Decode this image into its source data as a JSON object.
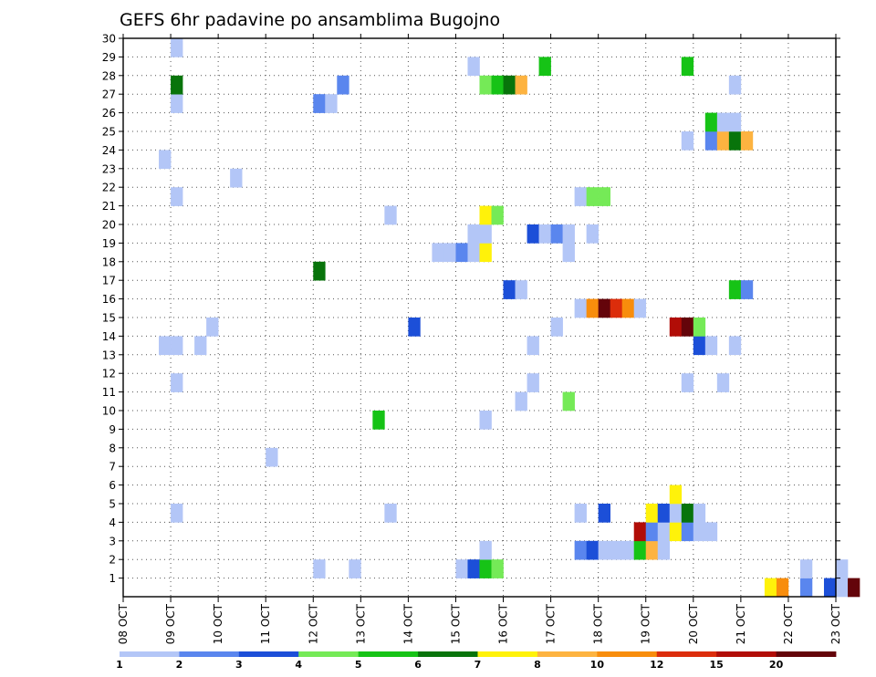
{
  "chart_data": {
    "type": "heatmap",
    "title": "GEFS 6hr padavine po ansamblima Bugojno",
    "xlabel": "",
    "ylabel": "",
    "x_ticks": [
      "08 OCT",
      "09 OCT",
      "10 OCT",
      "11 OCT",
      "12 OCT",
      "13 OCT",
      "14 OCT",
      "15 OCT",
      "16 OCT",
      "17 OCT",
      "18 OCT",
      "19 OCT",
      "20 OCT",
      "21 OCT",
      "22 OCT",
      "23 OCT"
    ],
    "y_ticks": [
      "1",
      "2",
      "3",
      "4",
      "5",
      "6",
      "7",
      "8",
      "9",
      "10",
      "11",
      "12",
      "13",
      "14",
      "15",
      "16",
      "17",
      "18",
      "19",
      "20",
      "21",
      "22",
      "23",
      "24",
      "25",
      "26",
      "27",
      "28",
      "29",
      "30"
    ],
    "xlim_days": [
      0,
      15
    ],
    "ylim_members": [
      0,
      30
    ],
    "grid": true,
    "colorbar": {
      "position": "bottom",
      "labels": [
        "1",
        "2",
        "3",
        "4",
        "5",
        "6",
        "7",
        "8",
        "10",
        "12",
        "15",
        "20"
      ],
      "colors": [
        "#b3c6f7",
        "#5a86ee",
        "#1c4fd8",
        "#75ea57",
        "#16c316",
        "#08740b",
        "#fff20a",
        "#fdb340",
        "#f88d0c",
        "#dc2d0b",
        "#b10d07",
        "#64040a"
      ]
    },
    "cells": [
      {
        "m": 0,
        "s": 54,
        "c": 6
      },
      {
        "m": 0,
        "s": 55,
        "c": 8
      },
      {
        "m": 0,
        "s": 57,
        "c": 1
      },
      {
        "m": 0,
        "s": 59,
        "c": 2
      },
      {
        "m": 0,
        "s": 60,
        "c": 0
      },
      {
        "m": 0,
        "s": 61,
        "c": 11
      },
      {
        "m": 1,
        "s": 16,
        "c": 0
      },
      {
        "m": 1,
        "s": 19,
        "c": 0
      },
      {
        "m": 1,
        "s": 28,
        "c": 0
      },
      {
        "m": 1,
        "s": 29,
        "c": 2
      },
      {
        "m": 1,
        "s": 30,
        "c": 4
      },
      {
        "m": 1,
        "s": 31,
        "c": 3
      },
      {
        "m": 1,
        "s": 57,
        "c": 0
      },
      {
        "m": 1,
        "s": 60,
        "c": 0
      },
      {
        "m": 2,
        "s": 30,
        "c": 0
      },
      {
        "m": 2,
        "s": 38,
        "c": 1
      },
      {
        "m": 2,
        "s": 39,
        "c": 2
      },
      {
        "m": 2,
        "s": 40,
        "c": 0
      },
      {
        "m": 2,
        "s": 41,
        "c": 0
      },
      {
        "m": 2,
        "s": 42,
        "c": 0
      },
      {
        "m": 2,
        "s": 43,
        "c": 4
      },
      {
        "m": 2,
        "s": 44,
        "c": 7
      },
      {
        "m": 2,
        "s": 45,
        "c": 0
      },
      {
        "m": 3,
        "s": 43,
        "c": 10
      },
      {
        "m": 3,
        "s": 44,
        "c": 1
      },
      {
        "m": 3,
        "s": 45,
        "c": 0
      },
      {
        "m": 3,
        "s": 46,
        "c": 6
      },
      {
        "m": 3,
        "s": 47,
        "c": 1
      },
      {
        "m": 3,
        "s": 48,
        "c": 0
      },
      {
        "m": 3,
        "s": 49,
        "c": 0
      },
      {
        "m": 4,
        "s": 4,
        "c": 0
      },
      {
        "m": 4,
        "s": 22,
        "c": 0
      },
      {
        "m": 4,
        "s": 38,
        "c": 0
      },
      {
        "m": 4,
        "s": 40,
        "c": 2
      },
      {
        "m": 4,
        "s": 44,
        "c": 6
      },
      {
        "m": 4,
        "s": 45,
        "c": 2
      },
      {
        "m": 4,
        "s": 46,
        "c": 0
      },
      {
        "m": 4,
        "s": 47,
        "c": 5
      },
      {
        "m": 4,
        "s": 48,
        "c": 0
      },
      {
        "m": 5,
        "s": 46,
        "c": 6
      },
      {
        "m": 7,
        "s": 12,
        "c": 0
      },
      {
        "m": 9,
        "s": 30,
        "c": 0
      },
      {
        "m": 9,
        "s": 21,
        "c": 4
      },
      {
        "m": 10,
        "s": 33,
        "c": 0
      },
      {
        "m": 10,
        "s": 37,
        "c": 3
      },
      {
        "m": 11,
        "s": 4,
        "c": 0
      },
      {
        "m": 11,
        "s": 34,
        "c": 0
      },
      {
        "m": 11,
        "s": 47,
        "c": 0
      },
      {
        "m": 11,
        "s": 50,
        "c": 0
      },
      {
        "m": 13,
        "s": 3,
        "c": 0
      },
      {
        "m": 13,
        "s": 4,
        "c": 0
      },
      {
        "m": 13,
        "s": 6,
        "c": 0
      },
      {
        "m": 13,
        "s": 34,
        "c": 0
      },
      {
        "m": 13,
        "s": 48,
        "c": 2
      },
      {
        "m": 13,
        "s": 49,
        "c": 0
      },
      {
        "m": 13,
        "s": 51,
        "c": 0
      },
      {
        "m": 14,
        "s": 7,
        "c": 0
      },
      {
        "m": 14,
        "s": 24,
        "c": 2
      },
      {
        "m": 14,
        "s": 36,
        "c": 0
      },
      {
        "m": 14,
        "s": 46,
        "c": 10
      },
      {
        "m": 14,
        "s": 47,
        "c": 11
      },
      {
        "m": 14,
        "s": 48,
        "c": 3
      },
      {
        "m": 15,
        "s": 38,
        "c": 0
      },
      {
        "m": 15,
        "s": 39,
        "c": 8
      },
      {
        "m": 15,
        "s": 40,
        "c": 11
      },
      {
        "m": 15,
        "s": 41,
        "c": 9
      },
      {
        "m": 15,
        "s": 42,
        "c": 8
      },
      {
        "m": 15,
        "s": 43,
        "c": 0
      },
      {
        "m": 16,
        "s": 32,
        "c": 2
      },
      {
        "m": 16,
        "s": 33,
        "c": 0
      },
      {
        "m": 16,
        "s": 51,
        "c": 4
      },
      {
        "m": 16,
        "s": 52,
        "c": 1
      },
      {
        "m": 17,
        "s": 16,
        "c": 5
      },
      {
        "m": 18,
        "s": 26,
        "c": 0
      },
      {
        "m": 18,
        "s": 27,
        "c": 0
      },
      {
        "m": 18,
        "s": 28,
        "c": 1
      },
      {
        "m": 18,
        "s": 29,
        "c": 0
      },
      {
        "m": 18,
        "s": 30,
        "c": 6
      },
      {
        "m": 18,
        "s": 37,
        "c": 0
      },
      {
        "m": 19,
        "s": 29,
        "c": 0
      },
      {
        "m": 19,
        "s": 30,
        "c": 0
      },
      {
        "m": 19,
        "s": 34,
        "c": 2
      },
      {
        "m": 19,
        "s": 35,
        "c": 0
      },
      {
        "m": 19,
        "s": 36,
        "c": 1
      },
      {
        "m": 19,
        "s": 37,
        "c": 0
      },
      {
        "m": 19,
        "s": 39,
        "c": 0
      },
      {
        "m": 20,
        "s": 22,
        "c": 0
      },
      {
        "m": 20,
        "s": 30,
        "c": 6
      },
      {
        "m": 20,
        "s": 31,
        "c": 3
      },
      {
        "m": 21,
        "s": 4,
        "c": 0
      },
      {
        "m": 21,
        "s": 38,
        "c": 0
      },
      {
        "m": 21,
        "s": 39,
        "c": 3
      },
      {
        "m": 21,
        "s": 40,
        "c": 3
      },
      {
        "m": 22,
        "s": 9,
        "c": 0
      },
      {
        "m": 23,
        "s": 3,
        "c": 0
      },
      {
        "m": 24,
        "s": 47,
        "c": 0
      },
      {
        "m": 24,
        "s": 49,
        "c": 1
      },
      {
        "m": 24,
        "s": 50,
        "c": 7
      },
      {
        "m": 24,
        "s": 51,
        "c": 5
      },
      {
        "m": 24,
        "s": 52,
        "c": 7
      },
      {
        "m": 25,
        "s": 49,
        "c": 4
      },
      {
        "m": 25,
        "s": 50,
        "c": 0
      },
      {
        "m": 25,
        "s": 51,
        "c": 0
      },
      {
        "m": 26,
        "s": 4,
        "c": 0
      },
      {
        "m": 26,
        "s": 16,
        "c": 1
      },
      {
        "m": 26,
        "s": 17,
        "c": 0
      },
      {
        "m": 27,
        "s": 4,
        "c": 5
      },
      {
        "m": 27,
        "s": 18,
        "c": 1
      },
      {
        "m": 27,
        "s": 30,
        "c": 3
      },
      {
        "m": 27,
        "s": 31,
        "c": 4
      },
      {
        "m": 27,
        "s": 32,
        "c": 5
      },
      {
        "m": 27,
        "s": 33,
        "c": 7
      },
      {
        "m": 27,
        "s": 51,
        "c": 0
      },
      {
        "m": 28,
        "s": 29,
        "c": 0
      },
      {
        "m": 28,
        "s": 35,
        "c": 4
      },
      {
        "m": 28,
        "s": 47,
        "c": 4
      },
      {
        "m": 29,
        "s": 4,
        "c": 0
      }
    ]
  }
}
